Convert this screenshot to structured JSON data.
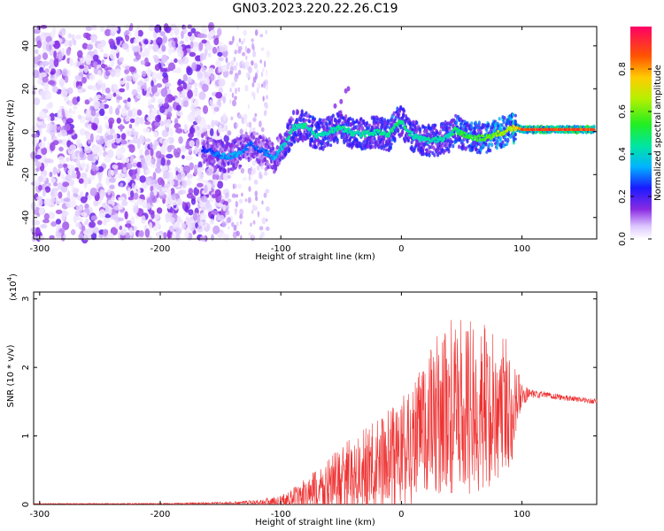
{
  "title": "GN03.2023.220.22.26.C19",
  "chart_data": [
    {
      "type": "heatmap",
      "name": "spectrogram",
      "xlabel": "Height of straight line (km)",
      "ylabel": "Frequency (Hz)",
      "xlim": [
        -305,
        162
      ],
      "ylim": [
        -50,
        49
      ],
      "xticks": [
        -300,
        -200,
        -100,
        0,
        100
      ],
      "yticks": [
        -40,
        -20,
        0,
        20,
        40
      ],
      "xtick_labels": [
        "-300",
        "-200",
        "-100",
        "0",
        "100"
      ],
      "ytick_labels": [
        "-40",
        "-20",
        "0",
        "20",
        "40"
      ],
      "noise_region_km": [
        -305,
        -145
      ],
      "sparse_noise_region_km": [
        -145,
        -110
      ],
      "ridge": {
        "description": "dominant frequency ridge vs height",
        "x": [
          -165,
          -155,
          -145,
          -135,
          -125,
          -115,
          -105,
          -95,
          -90,
          -80,
          -70,
          -60,
          -50,
          -40,
          -30,
          -20,
          -10,
          -5,
          0,
          5,
          10,
          20,
          30,
          40,
          45,
          50,
          60,
          70,
          80,
          90,
          95,
          100,
          110,
          120,
          130,
          140,
          150,
          160
        ],
        "y": [
          -8,
          -10,
          -12,
          -10,
          -6,
          -9,
          -12,
          -4,
          2,
          3,
          -2,
          0,
          2,
          -1,
          -1,
          0,
          -2,
          3,
          5,
          0,
          -2,
          -4,
          -4,
          -2,
          1,
          -1,
          -3,
          -3,
          -1,
          1,
          2,
          1,
          1,
          1,
          1,
          1,
          1,
          1
        ],
        "amplitude": [
          0.25,
          0.3,
          0.35,
          0.35,
          0.3,
          0.3,
          0.35,
          0.45,
          0.45,
          0.45,
          0.45,
          0.45,
          0.45,
          0.45,
          0.45,
          0.45,
          0.5,
          0.5,
          0.5,
          0.45,
          0.45,
          0.45,
          0.45,
          0.45,
          0.5,
          0.55,
          0.55,
          0.6,
          0.65,
          0.7,
          0.75,
          0.9,
          0.95,
          0.95,
          0.95,
          0.95,
          0.95,
          0.95
        ]
      },
      "colorbar": {
        "label": "Normalized spectral amplitude",
        "range": [
          0,
          1
        ],
        "ticks": [
          0.0,
          0.2,
          0.4,
          0.6,
          0.8
        ],
        "tick_labels": [
          "0.0",
          "0.2",
          "0.4",
          "0.6",
          "0.8"
        ]
      }
    },
    {
      "type": "line",
      "name": "snr",
      "xlabel": "Height of straight line (km)",
      "ylabel": "SNR (10 * v/v)",
      "yscale_label": "(x10",
      "yscale_exp": "4",
      "yscale_close": ")",
      "xlim": [
        -305,
        162
      ],
      "ylim": [
        0,
        3.1
      ],
      "xticks": [
        -300,
        -200,
        -100,
        0,
        100
      ],
      "yticks": [
        0,
        1,
        2,
        3
      ],
      "xtick_labels": [
        "-300",
        "-200",
        "-100",
        "0",
        "100"
      ],
      "ytick_labels": [
        "0",
        "1",
        "2",
        "3"
      ],
      "color": "#ee3333",
      "envelope": {
        "x": [
          -305,
          -200,
          -140,
          -120,
          -100,
          -80,
          -60,
          -40,
          -20,
          0,
          10,
          20,
          30,
          40,
          50,
          60,
          70,
          80,
          90,
          100,
          110,
          120,
          130,
          140,
          150,
          162
        ],
        "base": [
          0.01,
          0.01,
          0.02,
          0.03,
          0.05,
          0.12,
          0.25,
          0.4,
          0.55,
          0.75,
          0.9,
          1.1,
          1.3,
          1.4,
          1.4,
          1.4,
          1.4,
          1.4,
          1.45,
          1.6,
          1.6,
          1.6,
          1.57,
          1.55,
          1.53,
          1.5
        ],
        "spread": [
          0.005,
          0.008,
          0.02,
          0.04,
          0.08,
          0.25,
          0.45,
          0.6,
          0.7,
          0.85,
          0.95,
          1.1,
          1.2,
          1.3,
          1.3,
          1.3,
          1.25,
          1.2,
          1.0,
          0.15,
          0.06,
          0.05,
          0.05,
          0.04,
          0.04,
          0.04
        ]
      }
    }
  ]
}
